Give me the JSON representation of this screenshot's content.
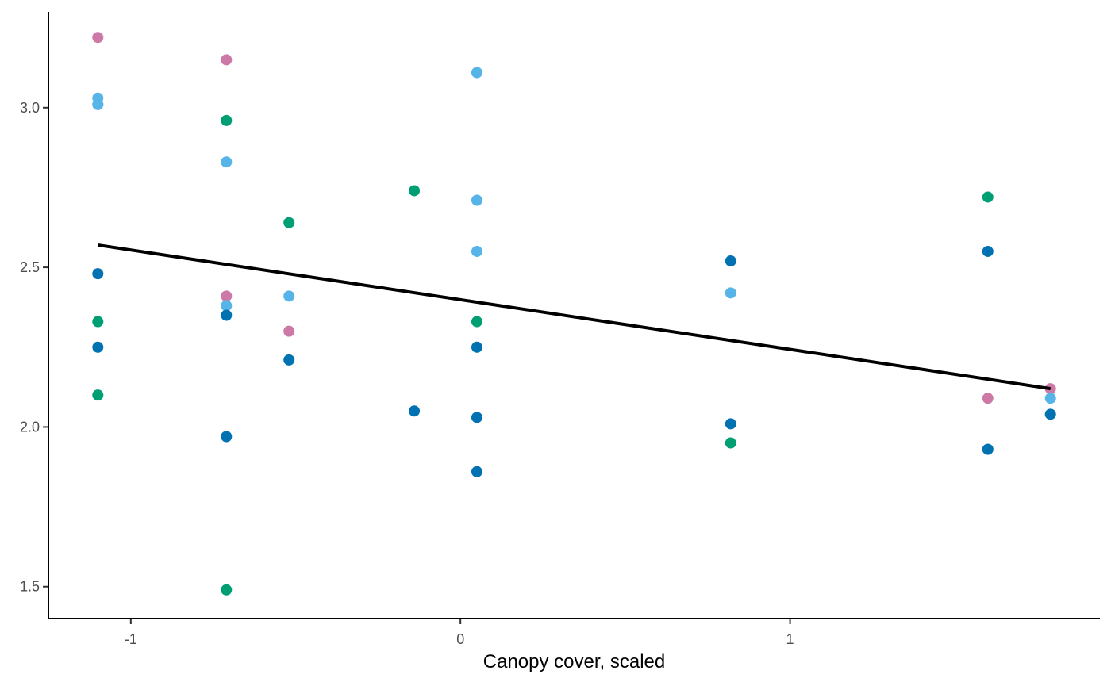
{
  "chart_data": {
    "type": "scatter",
    "title": "",
    "xlabel": "Canopy cover, scaled",
    "ylabel": "",
    "xlim": [
      -1.25,
      1.94
    ],
    "ylim": [
      1.4,
      3.3
    ],
    "x_ticks": [
      -1,
      0,
      1
    ],
    "x_tick_labels": [
      "-1",
      "0",
      "1"
    ],
    "y_ticks": [
      1.5,
      2.0,
      2.5,
      3.0
    ],
    "y_tick_labels": [
      "1.5",
      "2.0",
      "2.5",
      "3.0"
    ],
    "grid": false,
    "legend": "none",
    "series": [
      {
        "color": "#CC79A7",
        "points": [
          {
            "x": -1.1,
            "y": 3.22
          },
          {
            "x": -1.1,
            "y": 3.01
          },
          {
            "x": -0.71,
            "y": 3.15
          },
          {
            "x": -0.71,
            "y": 2.41
          },
          {
            "x": -0.52,
            "y": 2.3
          },
          {
            "x": 1.6,
            "y": 2.09
          },
          {
            "x": 1.79,
            "y": 2.12
          }
        ]
      },
      {
        "color": "#56B4E9",
        "points": [
          {
            "x": -1.1,
            "y": 3.03
          },
          {
            "x": -1.1,
            "y": 3.01
          },
          {
            "x": -0.71,
            "y": 2.83
          },
          {
            "x": -0.71,
            "y": 2.38
          },
          {
            "x": -0.52,
            "y": 2.41
          },
          {
            "x": 0.05,
            "y": 3.11
          },
          {
            "x": 0.05,
            "y": 2.71
          },
          {
            "x": 0.05,
            "y": 2.55
          },
          {
            "x": 0.82,
            "y": 2.42
          },
          {
            "x": 1.6,
            "y": 1.93
          },
          {
            "x": 1.79,
            "y": 2.09
          }
        ]
      },
      {
        "color": "#009E73",
        "points": [
          {
            "x": -1.1,
            "y": 2.33
          },
          {
            "x": -1.1,
            "y": 2.1
          },
          {
            "x": -0.71,
            "y": 2.96
          },
          {
            "x": -0.71,
            "y": 1.49
          },
          {
            "x": -0.52,
            "y": 2.64
          },
          {
            "x": -0.14,
            "y": 2.74
          },
          {
            "x": 0.05,
            "y": 2.33
          },
          {
            "x": 0.82,
            "y": 1.95
          },
          {
            "x": 1.6,
            "y": 2.72
          }
        ]
      },
      {
        "color": "#0072B2",
        "points": [
          {
            "x": -1.1,
            "y": 2.48
          },
          {
            "x": -1.1,
            "y": 2.25
          },
          {
            "x": -0.71,
            "y": 2.35
          },
          {
            "x": -0.71,
            "y": 1.97
          },
          {
            "x": -0.52,
            "y": 2.21
          },
          {
            "x": -0.14,
            "y": 2.05
          },
          {
            "x": 0.05,
            "y": 2.25
          },
          {
            "x": 0.05,
            "y": 2.03
          },
          {
            "x": 0.05,
            "y": 1.86
          },
          {
            "x": 0.82,
            "y": 2.52
          },
          {
            "x": 0.82,
            "y": 2.01
          },
          {
            "x": 1.6,
            "y": 2.55
          },
          {
            "x": 1.6,
            "y": 1.93
          },
          {
            "x": 1.79,
            "y": 2.04
          }
        ]
      }
    ],
    "trend_line": {
      "color": "#000000",
      "x": [
        -1.1,
        1.79
      ],
      "y": [
        2.57,
        2.12
      ]
    }
  }
}
